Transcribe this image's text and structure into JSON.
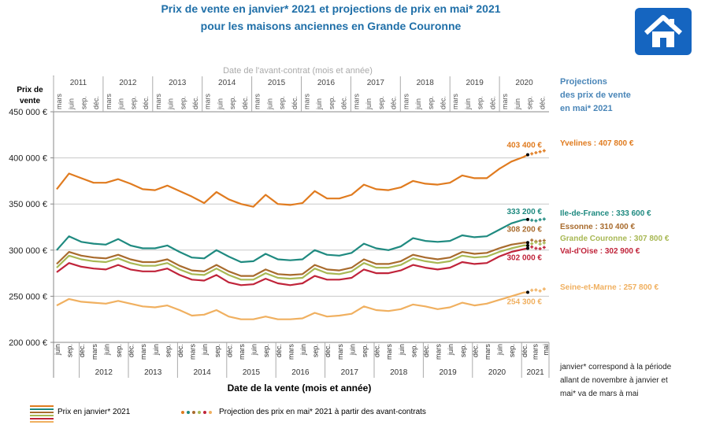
{
  "title": [
    "Prix de vente en janvier* 2021 et projections de prix en mai* 2021",
    "pour les maisons anciennes en Grande Couronne"
  ],
  "icon": "house-icon",
  "projection_header": [
    "Projections",
    "des prix de vente",
    "en mai* 2021"
  ],
  "note": [
    "janvier* correspond à la période",
    "allant de novembre à janvier et",
    "mai* va de mars à mai"
  ],
  "legend": {
    "line_label": "Prix en janvier* 2021",
    "dots_label": "Projection des prix en mai* 2021 à partir des avant-contrats"
  },
  "chart_data": {
    "type": "line",
    "title": "Prix de vente en janvier* 2021 et projections de prix en mai* 2021 pour les maisons anciennes en Grande Couronne",
    "ylabel": "Prix de vente",
    "xlabel": "Date de la vente (mois et année)",
    "x2label": "Date de l'avant-contrat (mois et année)",
    "ylim": [
      200000,
      450000
    ],
    "yticks": [
      "200 000 €",
      "250 000 €",
      "300 000 €",
      "350 000 €",
      "400 000 €",
      "450 000 €"
    ],
    "month_ticks": [
      "mars",
      "juin",
      "sep.",
      "déc."
    ],
    "bottom_years": [
      "2012",
      "2013",
      "2014",
      "2015",
      "2016",
      "2017",
      "2018",
      "2019",
      "2020",
      "2021"
    ],
    "top_years": [
      "2011",
      "2012",
      "2013",
      "2014",
      "2015",
      "2016",
      "2017",
      "2018",
      "2019",
      "2020"
    ],
    "grid": "horizontal",
    "x": [
      "2011-06",
      "2011-09",
      "2011-12",
      "2012-03",
      "2012-06",
      "2012-09",
      "2012-12",
      "2013-03",
      "2013-06",
      "2013-09",
      "2013-12",
      "2014-03",
      "2014-06",
      "2014-09",
      "2014-12",
      "2015-03",
      "2015-06",
      "2015-09",
      "2015-12",
      "2016-03",
      "2016-06",
      "2016-09",
      "2016-12",
      "2017-03",
      "2017-06",
      "2017-09",
      "2017-12",
      "2018-03",
      "2018-06",
      "2018-09",
      "2018-12",
      "2019-03",
      "2019-06",
      "2019-09",
      "2019-12",
      "2020-03",
      "2020-06",
      "2020-09",
      "2020-12",
      "2021-01"
    ],
    "projection_x": [
      "2021-02",
      "2021-03",
      "2021-04",
      "2021-05"
    ],
    "series": [
      {
        "name": "Yvelines",
        "color": "#e07b1f",
        "end_label": "403 400 €",
        "proj_label": "Yvelines : 407 800 €",
        "projection": [
          404500,
          405600,
          406700,
          407800
        ],
        "values": [
          366000,
          383000,
          378000,
          373000,
          373000,
          377000,
          372000,
          366000,
          365000,
          370000,
          364000,
          358000,
          351000,
          363000,
          355000,
          350000,
          347000,
          360000,
          350000,
          349000,
          351000,
          364000,
          356000,
          356000,
          360000,
          371000,
          366000,
          365000,
          368000,
          375000,
          372000,
          371000,
          373000,
          381000,
          378000,
          378000,
          388000,
          396000,
          401000,
          403400
        ]
      },
      {
        "name": "Ile-de-France",
        "color": "#1f8a80",
        "end_label": "333 200 €",
        "proj_label": "Ile-de-France : 333 600 €",
        "projection": [
          332500,
          331800,
          333000,
          333600
        ],
        "values": [
          300000,
          315000,
          309000,
          307000,
          306000,
          312000,
          305000,
          302000,
          302000,
          305000,
          298000,
          292000,
          291000,
          300000,
          293000,
          287000,
          288000,
          296000,
          290000,
          289000,
          290000,
          300000,
          295000,
          294000,
          297000,
          307000,
          302000,
          300000,
          304000,
          313000,
          310000,
          309000,
          310000,
          316000,
          314000,
          315000,
          322000,
          329000,
          333000,
          333200
        ]
      },
      {
        "name": "Essonne",
        "color": "#a86b2d",
        "end_label": "308 200 €",
        "proj_label": "Essonne : 310 400 €",
        "projection": [
          310800,
          309500,
          310000,
          310400
        ],
        "values": [
          285000,
          298000,
          294000,
          292000,
          291000,
          295000,
          290000,
          287000,
          287000,
          290000,
          283000,
          278000,
          277000,
          284000,
          277000,
          272000,
          272000,
          279000,
          274000,
          273000,
          274000,
          284000,
          279000,
          278000,
          281000,
          290000,
          285000,
          285000,
          288000,
          295000,
          292000,
          290000,
          292000,
          298000,
          296000,
          297000,
          302000,
          306000,
          308000,
          308200
        ]
      },
      {
        "name": "Grande Couronne",
        "color": "#a8b854",
        "end_label": "",
        "proj_label": "Grande Couronne : 307 800 €",
        "projection": [
          307000,
          308500,
          306500,
          307800
        ],
        "values": [
          281000,
          294000,
          290000,
          288000,
          287000,
          291000,
          286000,
          283000,
          283000,
          286000,
          279000,
          274000,
          273000,
          280000,
          273000,
          268000,
          268000,
          275000,
          270000,
          269000,
          270000,
          280000,
          275000,
          274000,
          277000,
          286000,
          281000,
          281000,
          284000,
          291000,
          288000,
          286000,
          288000,
          294000,
          292000,
          293000,
          298000,
          302000,
          305000,
          305000
        ]
      },
      {
        "name": "Val-d'Oise",
        "color": "#c0243a",
        "end_label": "302 000 €",
        "proj_label": "Val-d'Oise : 302 900 €",
        "projection": [
          303500,
          302000,
          301500,
          302900
        ],
        "values": [
          276000,
          286000,
          282000,
          280000,
          279000,
          284000,
          279000,
          277000,
          277000,
          280000,
          273000,
          268000,
          267000,
          273000,
          265000,
          262000,
          263000,
          269000,
          264000,
          262000,
          264000,
          272000,
          268000,
          268000,
          270000,
          279000,
          275000,
          275000,
          278000,
          284000,
          281000,
          279000,
          281000,
          287000,
          285000,
          286000,
          293000,
          298000,
          301000,
          302000
        ]
      },
      {
        "name": "Seine-et-Marne",
        "color": "#f0b060",
        "end_label": "254 300 €",
        "proj_label": "Seine-et-Marne : 257 800 €",
        "projection": [
          256500,
          256800,
          255800,
          257800
        ],
        "values": [
          240000,
          247000,
          244000,
          243000,
          242000,
          245000,
          242000,
          239000,
          238000,
          240000,
          235000,
          229000,
          230000,
          235000,
          228000,
          225000,
          225000,
          228000,
          225000,
          225000,
          226000,
          232000,
          228000,
          229000,
          231000,
          239000,
          235000,
          234000,
          236000,
          241000,
          239000,
          236000,
          238000,
          243000,
          240000,
          242000,
          246000,
          250000,
          254000,
          254300
        ]
      }
    ]
  }
}
